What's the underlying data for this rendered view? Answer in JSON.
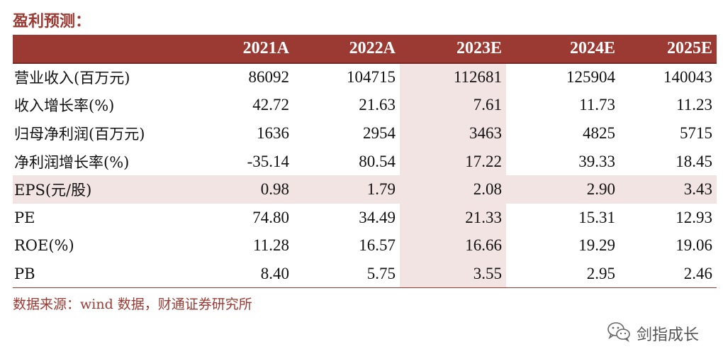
{
  "title": "盈利预测：",
  "table": {
    "columns": [
      "",
      "2021A",
      "2022A",
      "2023E",
      "2024E",
      "2025E"
    ],
    "rows": [
      {
        "label": "营业收入(百万元)",
        "values": [
          "86092",
          "104715",
          "112681",
          "125904",
          "140043"
        ]
      },
      {
        "label": "收入增长率(%)",
        "values": [
          "42.72",
          "21.63",
          "7.61",
          "11.73",
          "11.23"
        ]
      },
      {
        "label": "归母净利润(百万元)",
        "values": [
          "1636",
          "2954",
          "3463",
          "4825",
          "5715"
        ]
      },
      {
        "label": "净利润增长率(%)",
        "values": [
          "-35.14",
          "80.54",
          "17.22",
          "39.33",
          "18.45"
        ]
      },
      {
        "label": "EPS(元/股)",
        "values": [
          "0.98",
          "1.79",
          "2.08",
          "2.90",
          "3.43"
        ]
      },
      {
        "label": "PE",
        "values": [
          "74.80",
          "34.49",
          "21.33",
          "15.31",
          "12.93"
        ]
      },
      {
        "label": "ROE(%)",
        "values": [
          "11.28",
          "16.57",
          "16.66",
          "19.29",
          "19.06"
        ]
      },
      {
        "label": "PB",
        "values": [
          "8.40",
          "5.75",
          "3.55",
          "2.95",
          "2.46"
        ]
      }
    ]
  },
  "source": "数据来源：wind 数据，财通证券研究所",
  "watermark": {
    "text": "剑指成长",
    "icon": "wechat-icon"
  },
  "colors": {
    "accent": "#9b3a33",
    "highlight": "#f2e4e2"
  }
}
